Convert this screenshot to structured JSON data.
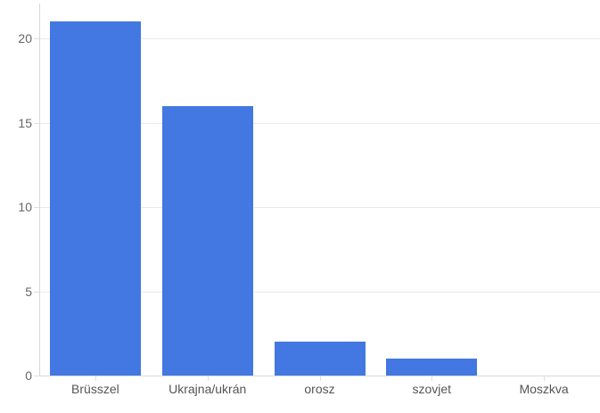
{
  "chart_data": {
    "type": "bar",
    "categories": [
      "Brüsszel",
      "Ukrajna/ukrán",
      "orosz",
      "szovjet",
      "Moszkva"
    ],
    "values": [
      21,
      16,
      2,
      1,
      0
    ],
    "title": "",
    "xlabel": "",
    "ylabel": "",
    "ylim": [
      0,
      22
    ],
    "y_ticks": [
      0,
      5,
      10,
      15,
      20
    ],
    "grid": true,
    "legend": "none",
    "colors": {
      "bar": "#4377e1",
      "gridline": "#e9e9e9",
      "axis_line": "#d9d9d9",
      "tick_mark": "#dddddd",
      "y_label_text": "#666666",
      "x_label_text": "#555555",
      "background": "#ffffff"
    }
  }
}
